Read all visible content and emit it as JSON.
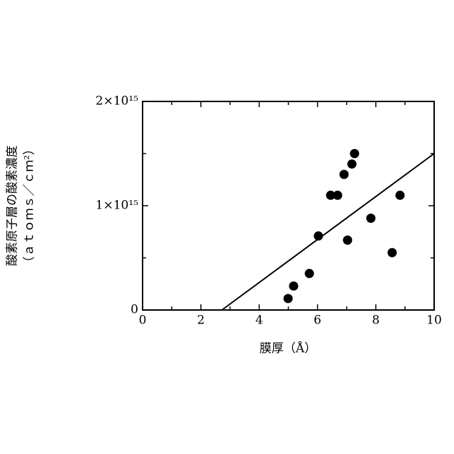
{
  "chart_data": {
    "type": "scatter",
    "x_label": "膜厚（Å）",
    "y_label": [
      "酸素原子層の酸素濃度",
      "（ａｔｏｍｓ／ｃｍ²）"
    ],
    "x": [
      4.99,
      5.18,
      5.72,
      6.03,
      6.45,
      6.69,
      6.91,
      7.03,
      7.18,
      7.27,
      7.83,
      8.56,
      8.83
    ],
    "values": [
      110000000000000.0,
      230000000000000.0,
      350000000000000.0,
      710000000000000.0,
      1100000000000000.0,
      1100000000000000.0,
      1300000000000000.0,
      670000000000000.0,
      1400000000000000.0,
      1500000000000000.0,
      880000000000000.0,
      550000000000000.0,
      1100000000000000.0
    ],
    "color": "#000000",
    "fit_line": {
      "x": [
        2.72,
        10
      ],
      "y": [
        0,
        1500000000000000.0
      ]
    },
    "xlim": [
      0,
      10
    ],
    "xticks": [
      0,
      2,
      4,
      6,
      8,
      10
    ],
    "xminorticks": [
      1,
      3,
      5,
      7,
      9
    ],
    "ylim": [
      0,
      2000000000000000.0
    ],
    "yticks": [
      0,
      {
        "value": 1000000000000000.0,
        "label": "1×10¹⁵"
      },
      {
        "value": 2000000000000000.0,
        "label": "2×10¹⁵"
      }
    ],
    "yminorticks": [
      500000000000000.0,
      1500000000000000.0
    ]
  }
}
